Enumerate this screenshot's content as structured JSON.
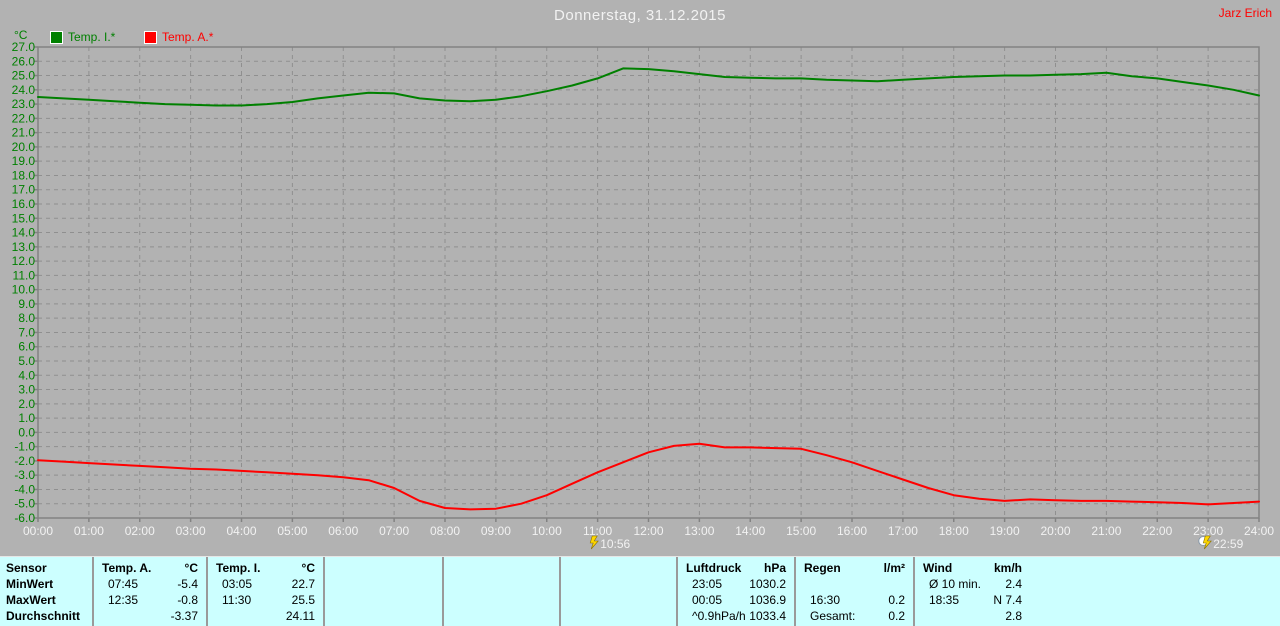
{
  "header": {
    "title": "Donnerstag, 31.12.2015",
    "user": "Jarz Erich"
  },
  "chart_data": {
    "type": "line",
    "title": "Donnerstag, 31.12.2015",
    "y_unit": "°C",
    "ylim": [
      -6.0,
      27.0
    ],
    "ytick_step": 1.0,
    "xlim_hours": [
      0,
      24
    ],
    "grid": "dashed",
    "legend_position": "top-left",
    "x_tick_labels": [
      "00:00",
      "01:00",
      "02:00",
      "03:00",
      "04:00",
      "05:00",
      "06:00",
      "07:00",
      "08:00",
      "09:00",
      "10:00",
      "11:00",
      "12:00",
      "13:00",
      "14:00",
      "15:00",
      "16:00",
      "17:00",
      "18:00",
      "19:00",
      "20:00",
      "21:00",
      "22:00",
      "23:00",
      "24:00"
    ],
    "legend": [
      {
        "label": "Temp. I.*",
        "color": "#008000"
      },
      {
        "label": "Temp. A.*",
        "color": "#ff0000"
      }
    ],
    "x_start_hour": 0,
    "x_step_hours": 0.5,
    "series": [
      {
        "name": "Temp. I.*",
        "color": "#008000",
        "values": [
          23.5,
          23.4,
          23.3,
          23.2,
          23.1,
          23.0,
          22.95,
          22.9,
          22.9,
          23.0,
          23.15,
          23.4,
          23.6,
          23.8,
          23.75,
          23.4,
          23.25,
          23.2,
          23.3,
          23.55,
          23.9,
          24.3,
          24.8,
          25.5,
          25.45,
          25.3,
          25.1,
          24.9,
          24.85,
          24.8,
          24.8,
          24.7,
          24.65,
          24.6,
          24.7,
          24.8,
          24.9,
          24.95,
          25.0,
          25.0,
          25.05,
          25.1,
          25.2,
          24.95,
          24.8,
          24.55,
          24.3,
          24.0,
          23.6
        ]
      },
      {
        "name": "Temp. A.*",
        "color": "#ff0000",
        "values": [
          -1.95,
          -2.05,
          -2.15,
          -2.25,
          -2.35,
          -2.45,
          -2.55,
          -2.6,
          -2.7,
          -2.8,
          -2.9,
          -3.0,
          -3.15,
          -3.35,
          -3.9,
          -4.8,
          -5.3,
          -5.4,
          -5.35,
          -5.0,
          -4.4,
          -3.6,
          -2.8,
          -2.1,
          -1.4,
          -0.95,
          -0.8,
          -1.05,
          -1.05,
          -1.1,
          -1.15,
          -1.6,
          -2.1,
          -2.7,
          -3.3,
          -3.9,
          -4.4,
          -4.65,
          -4.8,
          -4.7,
          -4.75,
          -4.8,
          -4.8,
          -4.85,
          -4.9,
          -4.95,
          -5.05,
          -4.95,
          -4.85
        ]
      }
    ],
    "markers": [
      {
        "time": "10:56",
        "hour": 10.933,
        "icon": "lightning-icon"
      },
      {
        "time": "22:59",
        "hour": 22.983,
        "icon": "moon-lightning-icon"
      }
    ]
  },
  "stats_table": {
    "row_labels": [
      "Sensor",
      "MinWert",
      "MaxWert",
      "Durchschnitt"
    ],
    "groups": [
      {
        "name": "Temp. A.",
        "unit": "°C",
        "rows": [
          [
            "07:45",
            "-5.4"
          ],
          [
            "12:35",
            "-0.8"
          ],
          [
            "",
            "-3.37"
          ]
        ]
      },
      {
        "name": "Temp. I.",
        "unit": "°C",
        "rows": [
          [
            "03:05",
            "22.7"
          ],
          [
            "11:30",
            "25.5"
          ],
          [
            "",
            "24.11"
          ]
        ]
      },
      {
        "name": "",
        "unit": "",
        "rows": [
          [
            "",
            ""
          ],
          [
            "",
            ""
          ],
          [
            "",
            ""
          ]
        ]
      },
      {
        "name": "",
        "unit": "",
        "rows": [
          [
            "",
            ""
          ],
          [
            "",
            ""
          ],
          [
            "",
            ""
          ]
        ]
      },
      {
        "name": "",
        "unit": "",
        "rows": [
          [
            "",
            ""
          ],
          [
            "",
            ""
          ],
          [
            "",
            ""
          ]
        ]
      },
      {
        "name": "Luftdruck",
        "unit": "hPa",
        "rows": [
          [
            "23:05",
            "1030.2"
          ],
          [
            "00:05",
            "1036.9"
          ],
          [
            "^0.9hPa/h",
            "1033.4"
          ]
        ]
      },
      {
        "name": "Regen",
        "unit": "l/m²",
        "rows": [
          [
            "",
            ""
          ],
          [
            "16:30",
            "0.2"
          ],
          [
            "Gesamt:",
            "0.2"
          ]
        ]
      },
      {
        "name": "Wind",
        "unit": "km/h",
        "rows": [
          [
            "Ø 10 min.",
            "2.4"
          ],
          [
            "18:35",
            "N 7.4"
          ],
          [
            "",
            "2.8"
          ]
        ]
      }
    ]
  },
  "colors": {
    "background": "#b2b2b2",
    "plot_frame": "#828282",
    "gridline": "#8f8f8f",
    "y_label": "#008000",
    "x_label": "#f2f2f2",
    "title": "#f2f2f2",
    "user": "#ff0000",
    "table_bg": "#ccffff",
    "table_separator": "#9a9a9a",
    "marker_bolt": "#ffd800"
  }
}
